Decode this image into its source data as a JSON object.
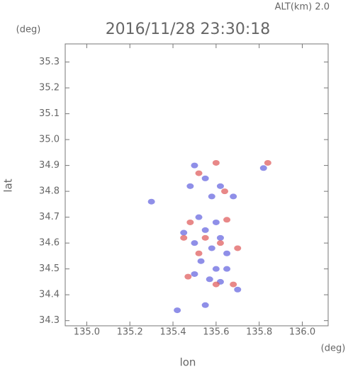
{
  "chart_data": {
    "type": "scatter",
    "title": "2016/11/28 23:30:18",
    "subtitle": "ALT(km) 2.0",
    "y_unit": "(deg)",
    "x_unit": "(deg)",
    "x_label": "lon",
    "y_label": "lat",
    "xlim": [
      134.9,
      136.12
    ],
    "ylim": [
      34.28,
      35.37
    ],
    "xticks": [
      {
        "value": 135.0,
        "label": "135.0"
      },
      {
        "value": 135.2,
        "label": "135.2"
      },
      {
        "value": 135.4,
        "label": "135.4"
      },
      {
        "value": 135.6,
        "label": "135.6"
      },
      {
        "value": 135.8,
        "label": "135.8"
      },
      {
        "value": 136.0,
        "label": "136.0"
      }
    ],
    "yticks": [
      34.3,
      34.4,
      34.5,
      34.6,
      34.7,
      34.8,
      34.9,
      {
        "value": 35.0,
        "label": "35.0"
      },
      35.1,
      35.2,
      35.3
    ],
    "series": [
      {
        "color": "#6a6ae0",
        "x": [
          135.5,
          135.55,
          135.62,
          135.68,
          135.82,
          135.48,
          135.58,
          135.52,
          135.6,
          135.55,
          135.62,
          135.5,
          135.58,
          135.65,
          135.53,
          135.6,
          135.57,
          135.62,
          135.5,
          135.65,
          135.45,
          135.7,
          135.3,
          135.42,
          135.55
        ],
        "y": [
          34.9,
          34.85,
          34.82,
          34.78,
          34.89,
          34.82,
          34.78,
          34.7,
          34.68,
          34.65,
          34.62,
          34.6,
          34.58,
          34.56,
          34.53,
          34.5,
          34.46,
          34.45,
          34.48,
          34.5,
          34.64,
          34.42,
          34.76,
          34.34,
          34.36
        ]
      },
      {
        "color": "#e06060",
        "x": [
          135.52,
          135.6,
          135.84,
          135.64,
          135.48,
          135.55,
          135.62,
          135.7,
          135.45,
          135.68,
          135.47,
          135.6,
          135.65,
          135.52
        ],
        "y": [
          34.87,
          34.91,
          34.91,
          34.8,
          34.68,
          34.62,
          34.6,
          34.58,
          34.62,
          34.44,
          34.47,
          34.44,
          34.69,
          34.56
        ]
      }
    ]
  }
}
